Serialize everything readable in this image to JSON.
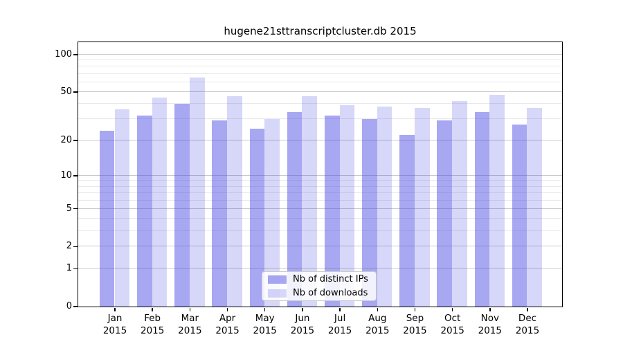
{
  "title": "hugene21sttranscriptcluster.db 2015",
  "legend": {
    "items": [
      {
        "label": "Nb of distinct IPs",
        "color": "rgba(68,68,227,0.47)"
      },
      {
        "label": "Nb of downloads",
        "color": "rgba(68,68,227,0.21)"
      }
    ]
  },
  "colors": {
    "distinct_ips_bar": "rgba(68,68,227,0.47)",
    "downloads_bar": "rgba(68,68,227,0.21)",
    "grid_major": "#c8c8c8",
    "grid_minor": "#e9e9e9",
    "axis": "#000000"
  },
  "axes": {
    "y_tick_labels": [
      "100",
      "50",
      "20",
      "10",
      "5",
      "2",
      "1",
      "0"
    ],
    "x_tick_year": "2015"
  },
  "chart_data": {
    "type": "bar",
    "title": "hugene21sttranscriptcluster.db 2015",
    "categories": [
      "Jan 2015",
      "Feb 2015",
      "Mar 2015",
      "Apr 2015",
      "May 2015",
      "Jun 2015",
      "Jul 2015",
      "Aug 2015",
      "Sep 2015",
      "Oct 2015",
      "Nov 2015",
      "Dec 2015"
    ],
    "series": [
      {
        "name": "Nb of distinct IPs",
        "values": [
          24,
          32,
          40,
          29,
          25,
          34,
          32,
          30,
          22,
          29,
          34,
          27
        ]
      },
      {
        "name": "Nb of downloads",
        "values": [
          36,
          45,
          65,
          46,
          30,
          46,
          39,
          38,
          37,
          42,
          47,
          37
        ]
      }
    ],
    "xlabel": "",
    "ylabel": "",
    "yscale": "log1p",
    "y_ticks": [
      0,
      1,
      2,
      5,
      10,
      20,
      50,
      100
    ],
    "y_minor_gridlines": [
      3,
      4,
      6,
      7,
      8,
      9,
      30,
      40,
      60,
      70,
      80,
      90
    ],
    "ylim": [
      0,
      126
    ],
    "grid": true,
    "legend_position": "lower center"
  }
}
